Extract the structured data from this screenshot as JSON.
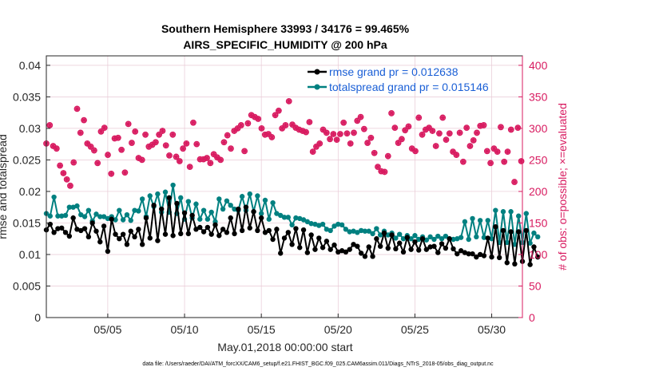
{
  "chart_data": {
    "type": "line",
    "title": [
      "Southern Hemisphere 33993 / 34176 = 99.465%",
      "AIRS_SPECIFIC_HUMIDITY @ 200 hPa"
    ],
    "xlabel": "May.01,2018 00:00:00 start",
    "ylabel_left": "rmse and totalspread",
    "ylabel_right": "# of obs: o=possible; ×=evaluated",
    "xlim": [
      1,
      32
    ],
    "ylim_left": [
      0,
      0.0415
    ],
    "ylim_right": [
      0,
      415
    ],
    "x_ticks": [
      5,
      10,
      15,
      20,
      25,
      30
    ],
    "x_tick_labels": [
      "05/05",
      "05/10",
      "05/15",
      "05/20",
      "05/25",
      "05/30"
    ],
    "y_ticks_left": [
      0,
      0.005,
      0.01,
      0.015,
      0.02,
      0.025,
      0.03,
      0.035,
      0.04
    ],
    "y_tick_labels_left": [
      "0",
      "0.005",
      "0.01",
      "0.015",
      "0.02",
      "0.025",
      "0.03",
      "0.035",
      "0.04"
    ],
    "y_ticks_right": [
      0,
      50,
      100,
      150,
      200,
      250,
      300,
      350,
      400
    ],
    "y_tick_labels_right": [
      "0",
      "50",
      "100",
      "150",
      "200",
      "250",
      "300",
      "350",
      "400"
    ],
    "colors": {
      "rmse": "#000000",
      "spread": "#008080",
      "obs": "#d81b60",
      "axis_right": "#d81b60",
      "legend_text": "#1a5fd6"
    },
    "x_start": 1.0,
    "x_step": 0.25,
    "series": [
      {
        "name": "rmse grand pr = 0.012638",
        "key": "rmse",
        "values": [
          0.0139,
          0.0148,
          0.0135,
          0.0141,
          0.0142,
          0.0135,
          0.0129,
          0.0158,
          0.014,
          0.0138,
          0.0141,
          0.0128,
          0.015,
          0.0137,
          0.012,
          0.0145,
          0.0105,
          0.0156,
          0.0132,
          0.0125,
          0.0132,
          0.0116,
          0.0137,
          0.0128,
          0.014,
          0.0116,
          0.0158,
          0.0126,
          0.0178,
          0.0122,
          0.0172,
          0.0132,
          0.019,
          0.013,
          0.0181,
          0.0133,
          0.0166,
          0.0133,
          0.0162,
          0.014,
          0.0143,
          0.0136,
          0.0143,
          0.0132,
          0.0147,
          0.013,
          0.014,
          0.0135,
          0.0158,
          0.0133,
          0.0172,
          0.0138,
          0.0175,
          0.0142,
          0.0168,
          0.0138,
          0.0158,
          0.0135,
          0.0138,
          0.0124,
          0.014,
          0.0102,
          0.0126,
          0.0135,
          0.0116,
          0.0141,
          0.0111,
          0.0139,
          0.0103,
          0.0131,
          0.0108,
          0.0126,
          0.0111,
          0.0121,
          0.0108,
          0.0115,
          0.0104,
          0.0106,
          0.0104,
          0.0108,
          0.0116,
          0.0113,
          0.0102,
          0.0097,
          0.0112,
          0.0097,
          0.0125,
          0.0113,
          0.0134,
          0.011,
          0.0131,
          0.0109,
          0.0118,
          0.0104,
          0.0127,
          0.0108,
          0.012,
          0.0107,
          0.0125,
          0.0108,
          0.0112,
          0.0113,
          0.0103,
          0.0117,
          0.011,
          0.0125,
          0.0109,
          0.0101,
          0.0106,
          0.0103,
          0.0101,
          0.0101,
          0.0096,
          0.01,
          0.0098,
          0.0126,
          0.0096,
          0.0144,
          0.0095,
          0.0138,
          0.0087,
          0.0136,
          0.0085,
          0.0136,
          0.0089,
          0.0138,
          0.0084,
          0.0112,
          0.0096
        ]
      },
      {
        "name": "totalspread grand pr = 0.015146",
        "key": "spread",
        "values": [
          0.0165,
          0.0161,
          0.0191,
          0.0161,
          0.0161,
          0.0162,
          0.0175,
          0.0175,
          0.0177,
          0.0163,
          0.016,
          0.017,
          0.0153,
          0.0164,
          0.016,
          0.016,
          0.0157,
          0.016,
          0.0155,
          0.017,
          0.0155,
          0.0163,
          0.0154,
          0.017,
          0.0169,
          0.0188,
          0.016,
          0.0193,
          0.0176,
          0.0196,
          0.0167,
          0.0199,
          0.0167,
          0.021,
          0.0165,
          0.019,
          0.0156,
          0.0184,
          0.0158,
          0.018,
          0.0156,
          0.017,
          0.0156,
          0.0167,
          0.0152,
          0.0188,
          0.0172,
          0.0185,
          0.0178,
          0.0172,
          0.017,
          0.0192,
          0.017,
          0.0196,
          0.0168,
          0.0193,
          0.0165,
          0.0186,
          0.0156,
          0.0182,
          0.0165,
          0.0162,
          0.0159,
          0.0159,
          0.0147,
          0.0158,
          0.0157,
          0.0155,
          0.0152,
          0.0149,
          0.0148,
          0.0146,
          0.0148,
          0.014,
          0.0138,
          0.0145,
          0.0148,
          0.0147,
          0.014,
          0.0136,
          0.0137,
          0.0135,
          0.0138,
          0.0137,
          0.0137,
          0.0133,
          0.0141,
          0.0131,
          0.0137,
          0.0131,
          0.0134,
          0.0126,
          0.0132,
          0.0125,
          0.013,
          0.0125,
          0.013,
          0.0124,
          0.0128,
          0.0123,
          0.0128,
          0.0124,
          0.0129,
          0.0125,
          0.0129,
          0.0125,
          0.0124,
          0.0125,
          0.0127,
          0.0152,
          0.0124,
          0.0157,
          0.0128,
          0.0154,
          0.0127,
          0.0154,
          0.0125,
          0.017,
          0.0119,
          0.0168,
          0.0119,
          0.0168,
          0.0116,
          0.0161,
          0.0119,
          0.0165,
          0.0118,
          0.0134,
          0.0128
        ]
      }
    ],
    "obs_counts": [
      276,
      305,
      272,
      268,
      241,
      229,
      219,
      209,
      246,
      331,
      293,
      313,
      276,
      271,
      265,
      245,
      295,
      301,
      258,
      228,
      284,
      285,
      266,
      230,
      307,
      277,
      295,
      253,
      250,
      290,
      271,
      274,
      278,
      290,
      296,
      273,
      257,
      290,
      255,
      248,
      268,
      276,
      239,
      309,
      275,
      251,
      251,
      253,
      245,
      259,
      254,
      250,
      278,
      289,
      268,
      296,
      300,
      305,
      264,
      308,
      321,
      318,
      315,
      300,
      290,
      291,
      286,
      321,
      328,
      300,
      305,
      343,
      306,
      301,
      298,
      296,
      294,
      310,
      263,
      271,
      276,
      298,
      293,
      283,
      291,
      282,
      291,
      309,
      292,
      276,
      293,
      312,
      318,
      299,
      277,
      285,
      261,
      239,
      232,
      231,
      256,
      324,
      301,
      277,
      283,
      297,
      303,
      268,
      264,
      317,
      290,
      298,
      301,
      296,
      272,
      292,
      317,
      282,
      292,
      263,
      258,
      293,
      247,
      301,
      272,
      281,
      293,
      304,
      305,
      264,
      245,
      268,
      263,
      302,
      247,
      263,
      298,
      215,
      301,
      248
    ],
    "obs_x_step": 0.2225,
    "obs_x_start": 1.0,
    "footer": "data file: /Users/raeder/DAI/ATM_forcXX/CAM6_setup/f.e21.FHIST_BGC.f09_025.CAM6assim.011/Diags_NTrS_2018-05/obs_diag_output.nc"
  }
}
